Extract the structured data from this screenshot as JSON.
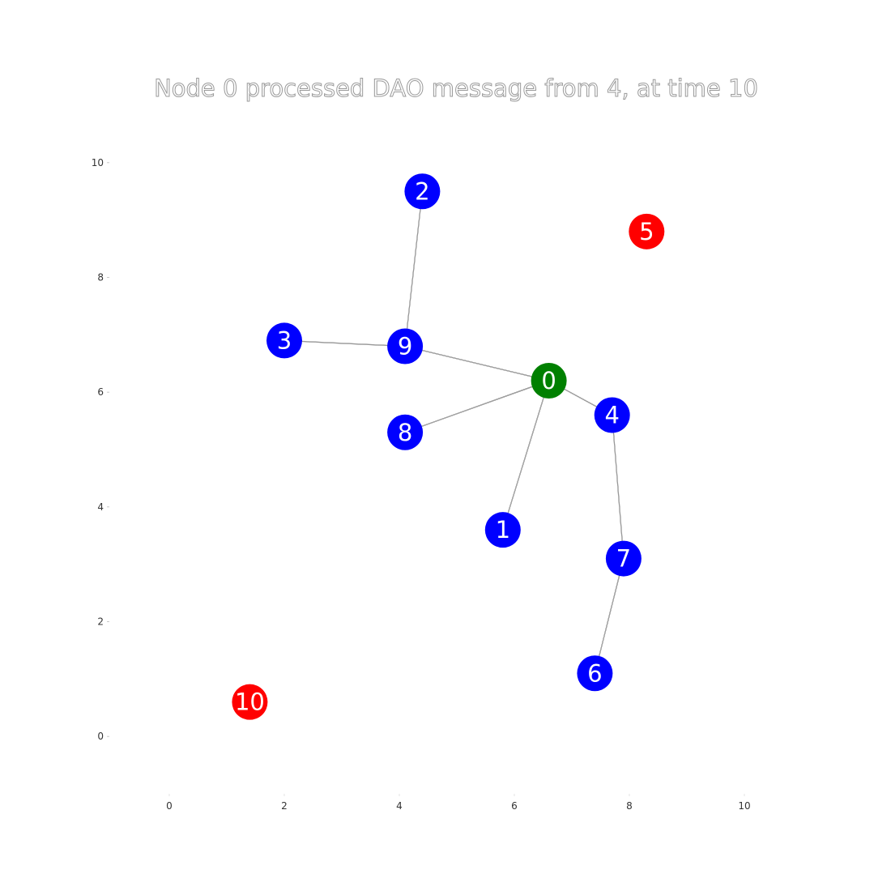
{
  "title": "Node 0 processed DAO message from 4, at time 10",
  "colors": {
    "root": "#008000",
    "joined": "#0000ff",
    "unjoined": "#ff0000"
  },
  "axes": {
    "xlim": [
      -1,
      11
    ],
    "ylim": [
      -1,
      11
    ],
    "xticks": [
      "0",
      "2",
      "4",
      "6",
      "8",
      "10"
    ],
    "yticks": [
      "0",
      "2",
      "4",
      "6",
      "8",
      "10"
    ]
  },
  "nodes": [
    {
      "id": "0",
      "x": 6.6,
      "y": 6.2,
      "status": "root"
    },
    {
      "id": "1",
      "x": 5.8,
      "y": 3.6,
      "status": "joined"
    },
    {
      "id": "2",
      "x": 4.4,
      "y": 9.5,
      "status": "joined"
    },
    {
      "id": "3",
      "x": 2.0,
      "y": 6.9,
      "status": "joined"
    },
    {
      "id": "4",
      "x": 7.7,
      "y": 5.6,
      "status": "joined"
    },
    {
      "id": "5",
      "x": 8.3,
      "y": 8.8,
      "status": "unjoined"
    },
    {
      "id": "6",
      "x": 7.4,
      "y": 1.1,
      "status": "joined"
    },
    {
      "id": "7",
      "x": 7.9,
      "y": 3.1,
      "status": "joined"
    },
    {
      "id": "8",
      "x": 4.1,
      "y": 5.3,
      "status": "joined"
    },
    {
      "id": "9",
      "x": 4.1,
      "y": 6.8,
      "status": "joined"
    },
    {
      "id": "10",
      "x": 1.4,
      "y": 0.6,
      "status": "unjoined"
    }
  ],
  "edges": [
    [
      "2",
      "9"
    ],
    [
      "3",
      "9"
    ],
    [
      "9",
      "0"
    ],
    [
      "8",
      "0"
    ],
    [
      "1",
      "0"
    ],
    [
      "0",
      "4"
    ],
    [
      "4",
      "7"
    ],
    [
      "7",
      "6"
    ]
  ]
}
